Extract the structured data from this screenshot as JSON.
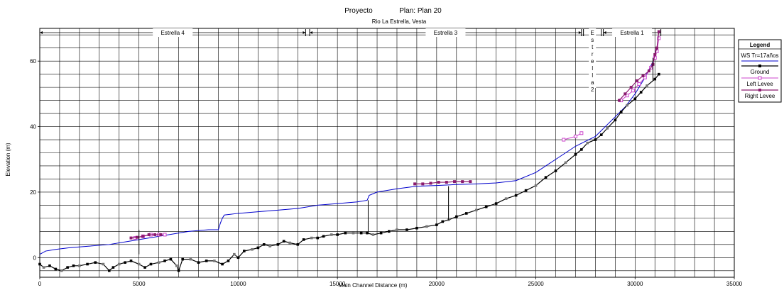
{
  "chart_data": {
    "type": "line",
    "title": "Proyecto",
    "plan_label": "Plan: Plan 20",
    "subtitle": "Rio La Estrella, Vesta",
    "xlabel": "Main Channel Distance (m)",
    "ylabel": "Elevation (m)",
    "xlim": [
      0,
      35000
    ],
    "ylim": [
      -6,
      70
    ],
    "x_ticks": [
      0,
      5000,
      10000,
      15000,
      20000,
      25000,
      30000,
      35000
    ],
    "x_tick_labels": [
      "0",
      "5000",
      "10000",
      "15000",
      "20000",
      "25000",
      "30000",
      "35000"
    ],
    "y_ticks": [
      0,
      20,
      40,
      60
    ],
    "y_tick_labels": [
      "0",
      "20",
      "40",
      "60"
    ],
    "grid": true,
    "legend": {
      "title": "Legend",
      "placement": "right",
      "entries": [
        "WS  Tr=17años",
        "Ground",
        "Left Levee",
        "Right Levee"
      ]
    },
    "reaches": [
      {
        "label": "Estrella 4",
        "x_start": 0,
        "x_end": 13400,
        "orientation": "horizontal"
      },
      {
        "label": "Estrella 3",
        "x_start": 13600,
        "x_end": 27300,
        "orientation": "horizontal"
      },
      {
        "label": "Estrella 2",
        "x_start": 27400,
        "x_end": 28300,
        "orientation": "vertical"
      },
      {
        "label": "Estrella 1",
        "x_start": 28400,
        "x_end": 31300,
        "orientation": "horizontal"
      }
    ],
    "series": [
      {
        "name": "WS  Tr=17años",
        "color": "#0000cc",
        "x": [
          0,
          300,
          800,
          1500,
          2500,
          3500,
          4500,
          5500,
          6500,
          7500,
          8500,
          9000,
          9100,
          9200,
          9300,
          10000,
          11000,
          12000,
          13000,
          13500,
          14000,
          15000,
          16000,
          16500,
          16600,
          17000,
          18000,
          19000,
          20000,
          21000,
          22000,
          23000,
          24000,
          25000,
          25500,
          26000,
          26500,
          27000,
          27500,
          28000,
          28500,
          29000,
          29500,
          30000,
          30500,
          31000
        ],
        "y": [
          1,
          2,
          2.5,
          3,
          3.5,
          4,
          5,
          6,
          7,
          8,
          8.5,
          8.5,
          10.5,
          12,
          13,
          13.5,
          14,
          14.5,
          15,
          15.5,
          16,
          16.5,
          17,
          17.5,
          19,
          20,
          21,
          21.8,
          22,
          22.3,
          22.5,
          22.8,
          23.5,
          26,
          28,
          30,
          32,
          34,
          35.5,
          37,
          40,
          43,
          46,
          50,
          55,
          61
        ]
      },
      {
        "name": "Ground",
        "color": "#000000",
        "x": [
          0,
          200,
          500,
          800,
          1100,
          1400,
          1700,
          2000,
          2400,
          2800,
          3200,
          3500,
          3700,
          4000,
          4300,
          4600,
          5000,
          5300,
          5600,
          6000,
          6300,
          6600,
          6900,
          7000,
          7200,
          7600,
          8000,
          8400,
          8800,
          9200,
          9500,
          9800,
          10000,
          10300,
          10700,
          11000,
          11300,
          11600,
          12000,
          12300,
          12600,
          13000,
          13300,
          13700,
          14000,
          14300,
          14700,
          15000,
          15400,
          15800,
          16200,
          16500,
          16800,
          17200,
          17600,
          18000,
          18500,
          19000,
          19500,
          20000,
          20300,
          20600,
          21000,
          21500,
          22000,
          22500,
          23000,
          23500,
          24000,
          24500,
          25000,
          25500,
          26000,
          26500,
          27000,
          27300,
          27600,
          28000,
          28300,
          28600,
          29000,
          29300,
          29600,
          30000,
          30300,
          30600,
          31000,
          31200
        ],
        "y": [
          -2,
          -3,
          -2.5,
          -3.5,
          -4,
          -3,
          -2.5,
          -2.5,
          -2,
          -1.5,
          -2,
          -4,
          -3,
          -2,
          -1.5,
          -1,
          -2,
          -3,
          -2,
          -1.5,
          -1,
          -0.5,
          -2.5,
          -4,
          -0.5,
          -0.5,
          -1.5,
          -1,
          -1,
          -2,
          -1,
          1,
          0,
          2,
          2.5,
          3,
          4,
          3.5,
          4,
          5,
          4.5,
          4,
          5.5,
          6,
          6,
          6.5,
          7,
          7,
          7.5,
          7.5,
          7.5,
          7.5,
          7,
          7.5,
          8,
          8.5,
          8.5,
          9,
          9.5,
          10,
          11,
          11.5,
          12.5,
          13.5,
          14.5,
          15.5,
          16.5,
          18,
          19,
          20.5,
          22,
          24.5,
          26.5,
          29,
          31.5,
          33,
          35,
          36,
          37.5,
          39.5,
          42,
          44.5,
          46.5,
          48.5,
          50.5,
          52.5,
          54.5,
          56
        ]
      },
      {
        "name": "Left Levee",
        "color": "#cc44cc",
        "x": [
          4800,
          5200,
          5600,
          6000,
          6300,
          26400,
          27000,
          27300,
          29300,
          29600,
          29900,
          30200,
          30500,
          30800,
          31000,
          31100,
          31200
        ],
        "y": [
          6,
          6.5,
          7,
          7,
          7,
          36,
          37,
          38,
          48,
          49.5,
          51,
          53,
          55,
          58,
          61,
          63,
          67
        ]
      },
      {
        "name": "Right Levee",
        "color": "#8a1a6e",
        "x": [
          4600,
          4900,
          5200,
          5500,
          5800,
          6100,
          18900,
          19300,
          19700,
          20100,
          20500,
          20900,
          21300,
          21700,
          29200,
          29500,
          29800,
          30100,
          30400,
          30700,
          30900,
          31000,
          31100,
          31200
        ],
        "y": [
          6,
          6.2,
          6.5,
          7,
          7,
          7,
          22.5,
          22.5,
          22.7,
          23,
          23,
          23.2,
          23.2,
          23.2,
          48,
          50,
          52,
          54,
          55.5,
          57,
          59,
          62,
          64,
          69
        ]
      }
    ]
  }
}
